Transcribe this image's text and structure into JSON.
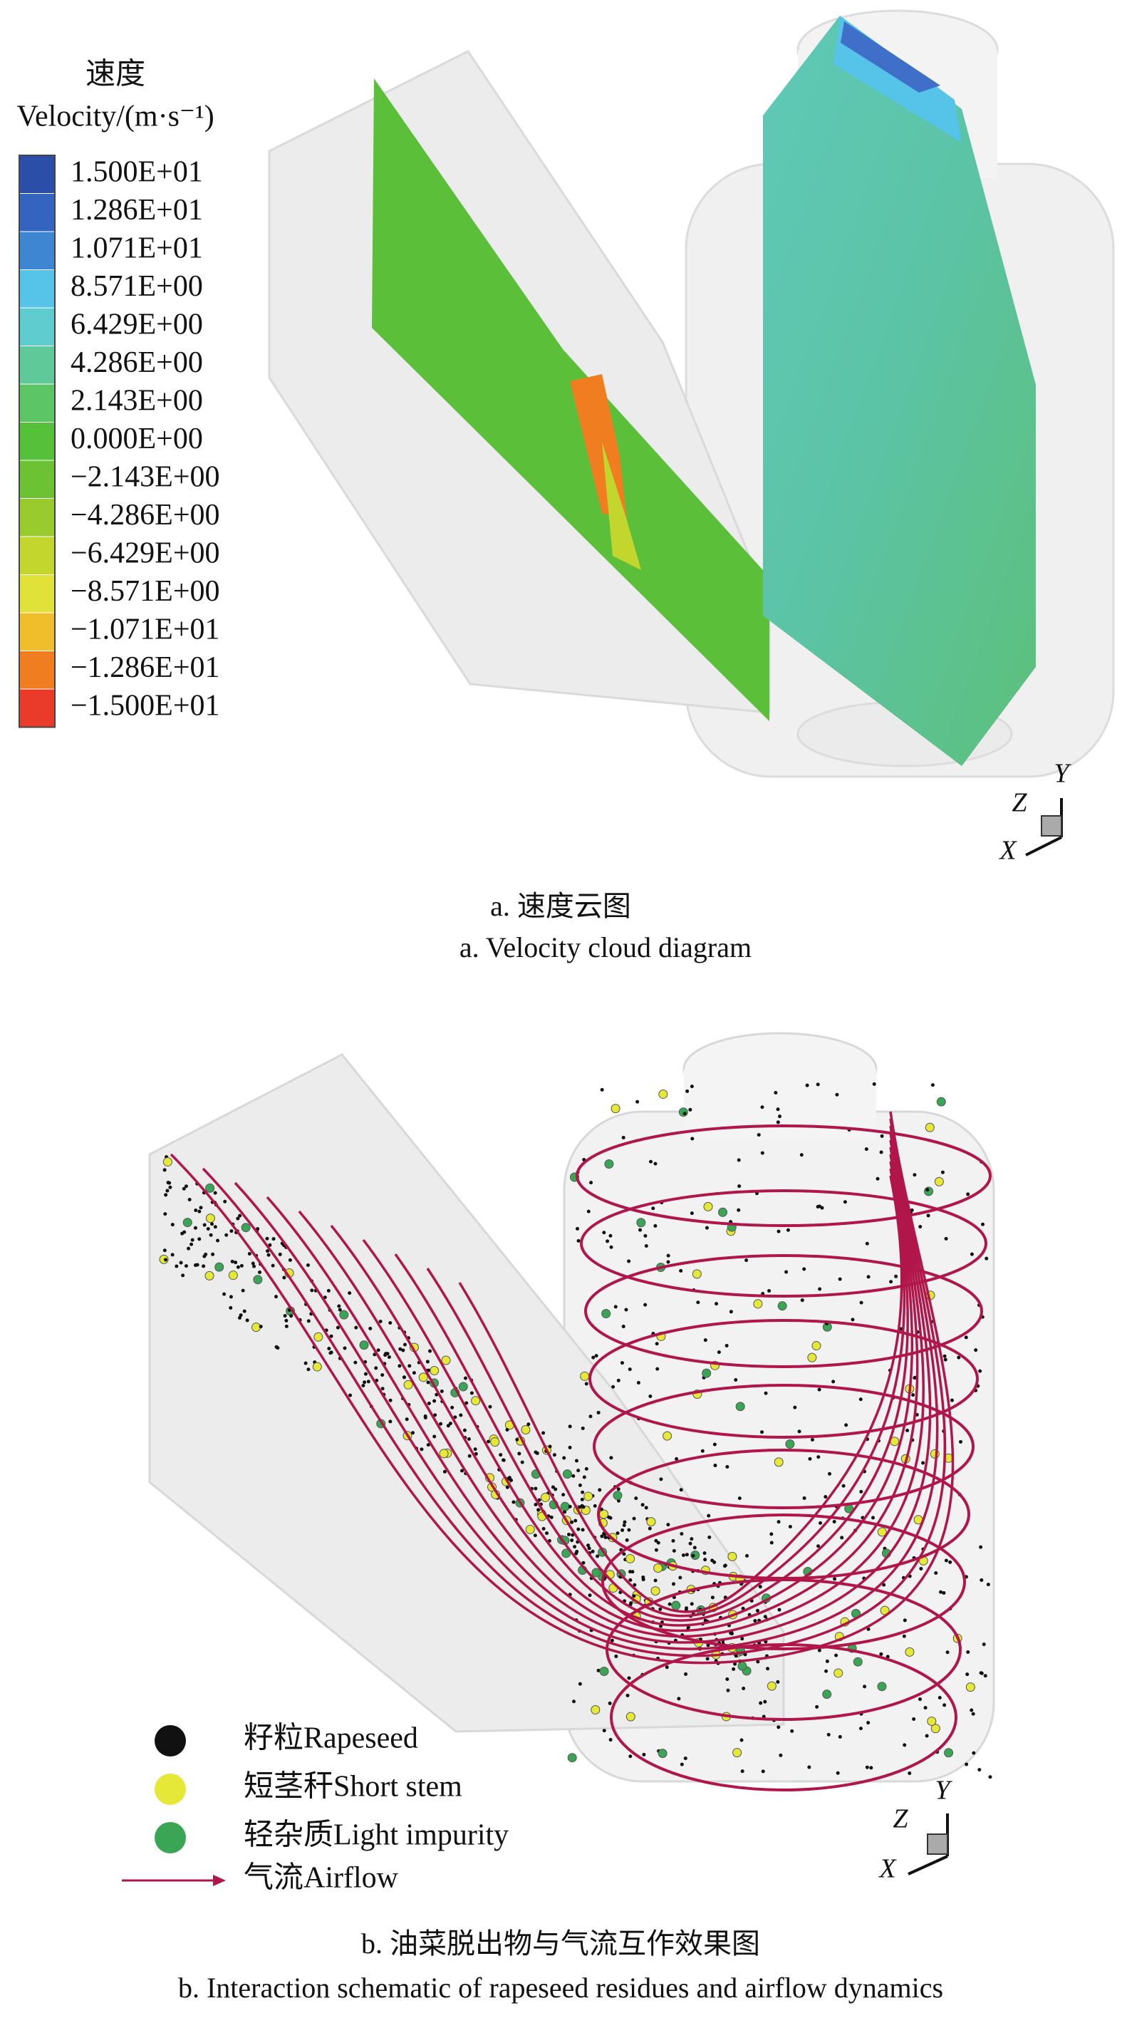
{
  "legend_title": {
    "zh": "速度",
    "en": "Velocity/(m·s⁻¹)"
  },
  "colorbar": {
    "labels": [
      "1.500E+01",
      "1.286E+01",
      "1.071E+01",
      "8.571E+00",
      "6.429E+00",
      "4.286E+00",
      "2.143E+00",
      "0.000E+00",
      "−2.143E+00",
      "−4.286E+00",
      "−6.429E+00",
      "−8.571E+00",
      "−1.071E+01",
      "−1.286E+01",
      "−1.500E+01"
    ],
    "colors": [
      "#2b4fa8",
      "#3464bf",
      "#3f86d2",
      "#55c4e8",
      "#5fcdd0",
      "#5fc99a",
      "#5cc667",
      "#56c03a",
      "#6cc232",
      "#9acb2e",
      "#c2d62d",
      "#e0e23a",
      "#f0be2a",
      "#f07e20",
      "#ea3a2a"
    ]
  },
  "panel_a": {
    "caption_zh": "a. 速度云图",
    "caption_en": "a. Velocity cloud diagram",
    "axes": {
      "y": "Y",
      "z": "Z",
      "x": "X"
    }
  },
  "panel_b": {
    "legend": [
      {
        "label": "籽粒Rapeseed",
        "color": "#111111"
      },
      {
        "label": "短茎秆Short stem",
        "color": "#e6e838"
      },
      {
        "label": "轻杂质Light impurity",
        "color": "#3aa655"
      }
    ],
    "airflow": {
      "label": "气流Airflow",
      "color": "#b0164a"
    },
    "caption_zh": "b. 油菜脱出物与气流互作效果图",
    "caption_en": "b. Interaction schematic of rapeseed residues and airflow dynamics",
    "axes": {
      "y": "Y",
      "z": "Z",
      "x": "X"
    }
  }
}
